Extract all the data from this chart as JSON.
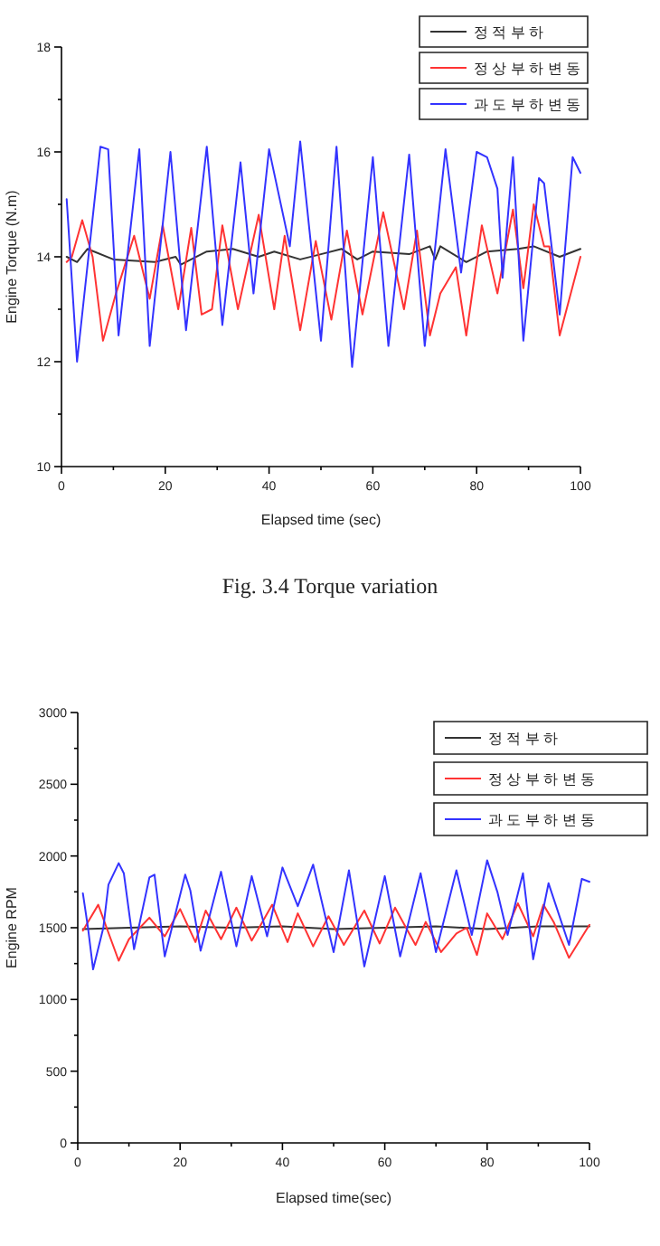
{
  "chart_data": [
    {
      "type": "line",
      "xlabel": "Elapsed time (sec)",
      "ylabel": "Engine Torque (N.m)",
      "xlim": [
        0,
        100
      ],
      "ylim": [
        10,
        18
      ],
      "xticks": [
        0,
        {
          "value": 10,
          "label": null
        },
        20,
        {
          "value": 30,
          "label": null
        },
        40,
        {
          "value": 50,
          "label": null
        },
        60,
        {
          "value": 70,
          "label": null
        },
        80,
        {
          "value": 90,
          "label": null
        },
        100
      ],
      "yticks": [
        10,
        {
          "value": 11,
          "label": null
        },
        12,
        {
          "value": 13,
          "label": null
        },
        14,
        {
          "value": 15,
          "label": null
        },
        16,
        {
          "value": 17,
          "label": null
        },
        18
      ],
      "legend": "top right",
      "grid": false,
      "annotations": [
        "Fig. 3.4  Torque variation"
      ],
      "series": [
        {
          "name": "정 적 부 하",
          "color": "#333333",
          "x": [
            1,
            3,
            5,
            10,
            18,
            22,
            23,
            28,
            33,
            38,
            41,
            46,
            50,
            54,
            57,
            60,
            67,
            71,
            72,
            73,
            78,
            82,
            88,
            91,
            96,
            100
          ],
          "values": [
            14.0,
            13.9,
            14.15,
            13.95,
            13.9,
            14.0,
            13.85,
            14.1,
            14.15,
            14.0,
            14.1,
            13.95,
            14.05,
            14.15,
            13.95,
            14.1,
            14.05,
            14.2,
            13.95,
            14.2,
            13.9,
            14.1,
            14.15,
            14.2,
            14.0,
            14.15
          ]
        },
        {
          "name": "정 상 부 하 변 동",
          "color": "#ff3333",
          "x": [
            1,
            2,
            4,
            6,
            8,
            10.5,
            14,
            17,
            19.5,
            22.5,
            25,
            27,
            29,
            31,
            34,
            38,
            41,
            43,
            46,
            49,
            52,
            55,
            58,
            62,
            66,
            68.5,
            71,
            73,
            76,
            78,
            81,
            84,
            87,
            89,
            91,
            93,
            94,
            96,
            100
          ],
          "values": [
            13.9,
            14.0,
            14.7,
            14.0,
            12.4,
            13.3,
            14.4,
            13.2,
            14.6,
            13.0,
            14.55,
            12.9,
            13.0,
            14.6,
            13.0,
            14.8,
            13.0,
            14.4,
            12.6,
            14.3,
            12.8,
            14.5,
            12.9,
            14.85,
            13.0,
            14.5,
            12.5,
            13.3,
            13.8,
            12.5,
            14.6,
            13.3,
            14.9,
            13.4,
            15.0,
            14.2,
            14.2,
            12.5,
            14.0
          ]
        },
        {
          "name": "과 도 부 하 변 동",
          "color": "#3333ff",
          "x": [
            1,
            3,
            7.5,
            9,
            11,
            15,
            17,
            21,
            24,
            28,
            31,
            34.5,
            37,
            40,
            44,
            46,
            50,
            53,
            56,
            60,
            63,
            67,
            70,
            74,
            77,
            80,
            82,
            84,
            85,
            87,
            89,
            92,
            93,
            96,
            98.5,
            100
          ],
          "values": [
            15.1,
            12.0,
            16.1,
            16.05,
            12.5,
            16.05,
            12.3,
            16.0,
            12.6,
            16.1,
            12.7,
            15.8,
            13.3,
            16.05,
            14.2,
            16.2,
            12.4,
            16.1,
            11.9,
            15.9,
            12.3,
            15.95,
            12.3,
            16.05,
            13.7,
            16.0,
            15.9,
            15.3,
            13.6,
            15.9,
            12.4,
            15.5,
            15.4,
            12.9,
            15.9,
            15.6
          ]
        }
      ]
    },
    {
      "type": "line",
      "xlabel": "Elapsed time(sec)",
      "ylabel": "Engine RPM",
      "xlim": [
        0,
        100
      ],
      "ylim": [
        0,
        3000
      ],
      "xticks": [
        0,
        {
          "value": 10,
          "label": null
        },
        20,
        {
          "value": 30,
          "label": null
        },
        40,
        {
          "value": 50,
          "label": null
        },
        60,
        {
          "value": 70,
          "label": null
        },
        80,
        {
          "value": 90,
          "label": null
        },
        100
      ],
      "yticks": [
        0,
        {
          "value": 250,
          "label": null
        },
        500,
        {
          "value": 750,
          "label": null
        },
        1000,
        {
          "value": 1250,
          "label": null
        },
        1500,
        {
          "value": 1750,
          "label": null
        },
        2000,
        {
          "value": 2250,
          "label": null
        },
        2500,
        {
          "value": 2750,
          "label": null
        },
        3000
      ],
      "legend": "top right",
      "grid": false,
      "series": [
        {
          "name": "정 적 부 하",
          "color": "#333333",
          "x": [
            1,
            10,
            20,
            30,
            40,
            50,
            60,
            70,
            80,
            90,
            100
          ],
          "values": [
            1490,
            1500,
            1510,
            1500,
            1510,
            1490,
            1500,
            1510,
            1490,
            1510,
            1510
          ]
        },
        {
          "name": "정 상 부 하 변 동",
          "color": "#ff3333",
          "x": [
            1,
            4,
            8,
            10,
            14,
            17,
            20,
            23,
            25,
            28,
            31,
            34,
            38,
            41,
            43,
            46,
            49,
            52,
            56,
            59,
            62,
            66,
            68,
            71,
            74,
            76,
            78,
            80,
            83,
            86,
            89,
            91,
            93,
            96,
            100
          ],
          "values": [
            1480,
            1660,
            1270,
            1420,
            1570,
            1440,
            1630,
            1400,
            1620,
            1420,
            1640,
            1410,
            1660,
            1400,
            1600,
            1370,
            1580,
            1380,
            1620,
            1390,
            1640,
            1380,
            1540,
            1330,
            1460,
            1500,
            1310,
            1600,
            1420,
            1670,
            1440,
            1660,
            1540,
            1290,
            1520
          ]
        },
        {
          "name": "과 도 부 하 변 동",
          "color": "#3333ff",
          "x": [
            1,
            2,
            3,
            5,
            6,
            8,
            9,
            11,
            14,
            15,
            17,
            21,
            22,
            24,
            28,
            31,
            34,
            37,
            40,
            43,
            46,
            50,
            53,
            56,
            60,
            63,
            67,
            70,
            74,
            77,
            80,
            82,
            84,
            87,
            89,
            92,
            96,
            98.5,
            100
          ],
          "values": [
            1740,
            1500,
            1210,
            1500,
            1800,
            1950,
            1880,
            1350,
            1850,
            1870,
            1300,
            1870,
            1760,
            1340,
            1890,
            1370,
            1860,
            1440,
            1920,
            1650,
            1940,
            1330,
            1900,
            1230,
            1860,
            1300,
            1880,
            1330,
            1900,
            1450,
            1970,
            1750,
            1450,
            1880,
            1280,
            1810,
            1380,
            1840,
            1820
          ]
        }
      ]
    }
  ]
}
